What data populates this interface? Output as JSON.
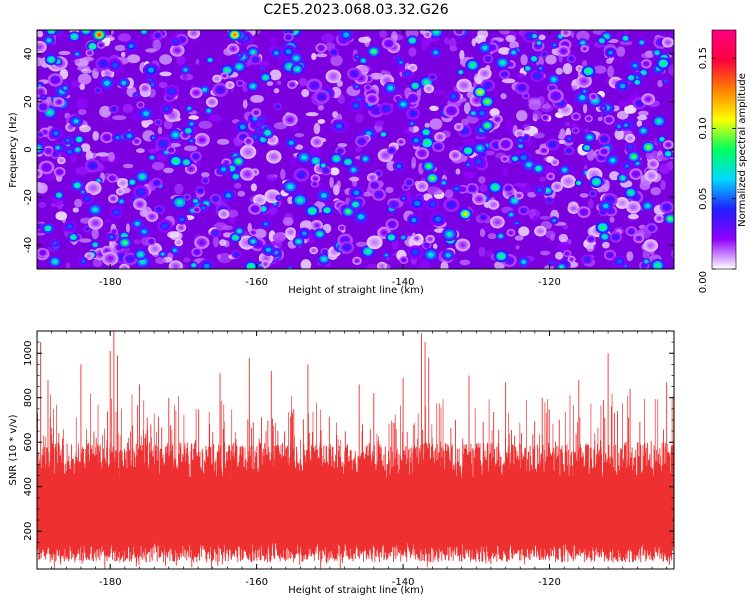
{
  "title": "C2E5.2023.068.03.32.G26",
  "chart_data": [
    {
      "type": "heatmap",
      "title": "C2E5.2023.068.03.32.G26",
      "xlabel": "Height of straight line (km)",
      "ylabel": "Frequency (Hz)",
      "xlim": [
        -190,
        -103
      ],
      "ylim": [
        -50,
        50
      ],
      "x_ticks": [
        -180,
        -160,
        -140,
        -120
      ],
      "y_ticks": [
        -40,
        -20,
        0,
        20,
        40
      ],
      "colorbar": {
        "label": "Normalized spectral amplitude",
        "range": [
          0,
          0.17
        ],
        "ticks": [
          0.0,
          0.05,
          0.1,
          0.15
        ],
        "tick_labels": [
          "0.00",
          "0.05",
          "0.10",
          "0.15"
        ],
        "colors": [
          "#ffffff",
          "#9000ff",
          "#2020ff",
          "#00d8ff",
          "#00ff60",
          "#ffff00",
          "#ff8000",
          "#ff0040",
          "#ff0080"
        ]
      },
      "background_level": 0.01,
      "typical_peak_range": [
        0.04,
        0.1
      ],
      "max_value": 0.16,
      "notable_peaks": [
        {
          "x": -181.5,
          "y": 48,
          "value": 0.14
        },
        {
          "x": -163,
          "y": 48,
          "value": 0.13
        },
        {
          "x": -129.5,
          "y": 24,
          "value": 0.11
        },
        {
          "x": -128.5,
          "y": 20,
          "value": 0.1
        },
        {
          "x": -136,
          "y": -12,
          "value": 0.1
        },
        {
          "x": -136.5,
          "y": -7,
          "value": 0.09
        },
        {
          "x": -147.5,
          "y": -26,
          "value": 0.09
        },
        {
          "x": -146.5,
          "y": -23,
          "value": 0.08
        },
        {
          "x": -131.5,
          "y": -27,
          "value": 0.11
        },
        {
          "x": -106.5,
          "y": 1,
          "value": 0.1
        },
        {
          "x": -108.5,
          "y": -3,
          "value": 0.09
        },
        {
          "x": -178,
          "y": -39,
          "value": 0.09
        },
        {
          "x": -162.5,
          "y": -5,
          "value": 0.09
        },
        {
          "x": -128.5,
          "y": 10,
          "value": 0.09
        },
        {
          "x": -184.5,
          "y": -15,
          "value": 0.08
        },
        {
          "x": -158.5,
          "y": 7,
          "value": 0.08
        },
        {
          "x": -144,
          "y": 41,
          "value": 0.09
        },
        {
          "x": -121.5,
          "y": -8,
          "value": 0.08
        },
        {
          "x": -103.5,
          "y": -29,
          "value": 0.09
        },
        {
          "x": -188.5,
          "y": -33,
          "value": 0.08
        }
      ]
    },
    {
      "type": "line",
      "series_name": "SNR",
      "color": "#ee3030",
      "xlabel": "Height of straight line (km)",
      "ylabel": "SNR (10 * v/v)",
      "xlim": [
        -190,
        -103
      ],
      "ylim": [
        30,
        1100
      ],
      "x_ticks": [
        -180,
        -160,
        -140,
        -120
      ],
      "y_ticks": [
        200,
        400,
        600,
        800,
        1000
      ],
      "band_lower_typical": 150,
      "band_upper_typical": 520,
      "mean_level": 330,
      "spikes": [
        {
          "x": -189.5,
          "y": 1050
        },
        {
          "x": -188.5,
          "y": 880
        },
        {
          "x": -184,
          "y": 950
        },
        {
          "x": -180,
          "y": 1010
        },
        {
          "x": -179.5,
          "y": 1100
        },
        {
          "x": -179,
          "y": 990
        },
        {
          "x": -176,
          "y": 860
        },
        {
          "x": -172,
          "y": 800
        },
        {
          "x": -165,
          "y": 910
        },
        {
          "x": -161,
          "y": 980
        },
        {
          "x": -158,
          "y": 920
        },
        {
          "x": -153,
          "y": 950
        },
        {
          "x": -146,
          "y": 860
        },
        {
          "x": -144,
          "y": 820
        },
        {
          "x": -140,
          "y": 890
        },
        {
          "x": -137.5,
          "y": 1090
        },
        {
          "x": -137,
          "y": 1050
        },
        {
          "x": -136.5,
          "y": 980
        },
        {
          "x": -131,
          "y": 900
        },
        {
          "x": -126,
          "y": 870
        },
        {
          "x": -121,
          "y": 800
        },
        {
          "x": -116,
          "y": 880
        },
        {
          "x": -112,
          "y": 1000
        },
        {
          "x": -109,
          "y": 840
        },
        {
          "x": -104,
          "y": 870
        }
      ]
    }
  ]
}
